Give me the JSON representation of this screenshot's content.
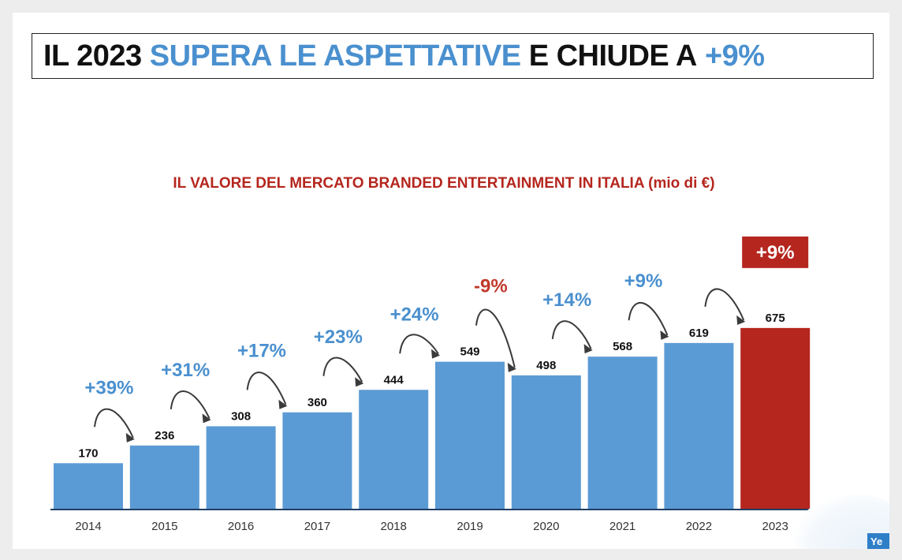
{
  "headline": {
    "part1": "IL 2023",
    "part2": "SUPERA LE ASPETTATIVE",
    "part3": "E CHIUDE A",
    "part4": "+9%"
  },
  "corner_badge": "Ye",
  "colors": {
    "bar": "#5b9bd5",
    "highlight": "#b5261e",
    "growth_positive": "#4a90cf",
    "growth_negative": "#c0392b",
    "title": "#b5261e"
  },
  "chart_data": {
    "type": "bar",
    "title": "IL VALORE DEL MERCATO BRANDED ENTERTAINMENT IN ITALIA (mio di €)",
    "categories": [
      "2014",
      "2015",
      "2016",
      "2017",
      "2018",
      "2019",
      "2020",
      "2021",
      "2022",
      "2023"
    ],
    "values": [
      170,
      236,
      308,
      360,
      444,
      549,
      498,
      568,
      619,
      675
    ],
    "highlight_index": 9,
    "growth_labels": [
      "+39%",
      "+31%",
      "+17%",
      "+23%",
      "+24%",
      "-9%",
      "+14%",
      "+9%",
      "+9%"
    ],
    "ylim": [
      0,
      800
    ],
    "xlabel": "",
    "ylabel": "",
    "grid": false,
    "legend": "none"
  }
}
